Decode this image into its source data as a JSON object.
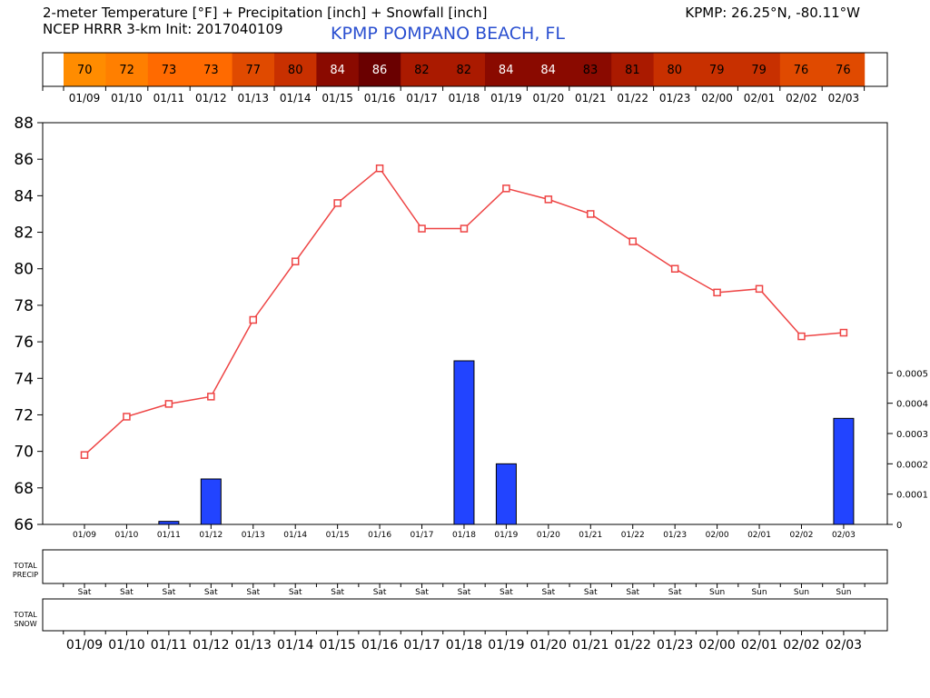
{
  "header": {
    "title": "2-meter Temperature [°F] + Precipitation [inch] + Snowfall [inch]",
    "model_line": "NCEP HRRR 3-km Init: 2017040109",
    "station_coords": "KPMP: 26.25°N, -80.11°W",
    "station_name": "KPMP POMPANO BEACH, FL"
  },
  "panels": {
    "precip_label_line1": "TOTAL",
    "precip_label_line2": "PRECIP",
    "snow_label_line1": "TOTAL",
    "snow_label_line2": "SNOW"
  },
  "colors": {
    "temperature_line": "#ee4444",
    "precip_bar": "#2244ff",
    "strip_scale": [
      "#ff8c00",
      "#ff7f00",
      "#ff6a00",
      "#e04a00",
      "#c83000",
      "#aa1a00",
      "#8a0a00",
      "#6a0000"
    ]
  },
  "chart_data": {
    "type": "line",
    "x": [
      "01/09",
      "01/10",
      "01/11",
      "01/12",
      "01/13",
      "01/14",
      "01/15",
      "01/16",
      "01/17",
      "01/18",
      "01/19",
      "01/20",
      "01/21",
      "01/22",
      "01/23",
      "02/00",
      "02/01",
      "02/02",
      "02/03"
    ],
    "days": [
      "Sat",
      "Sat",
      "Sat",
      "Sat",
      "Sat",
      "Sat",
      "Sat",
      "Sat",
      "Sat",
      "Sat",
      "Sat",
      "Sat",
      "Sat",
      "Sat",
      "Sat",
      "Sun",
      "Sun",
      "Sun",
      "Sun"
    ],
    "temperature_strip": [
      70,
      72,
      73,
      73,
      77,
      80,
      84,
      86,
      82,
      82,
      84,
      84,
      83,
      81,
      80,
      79,
      79,
      76,
      76
    ],
    "series": [
      {
        "name": "2-meter Temperature [°F]",
        "values": [
          69.8,
          71.9,
          72.6,
          73.0,
          77.2,
          80.4,
          83.6,
          85.5,
          82.2,
          82.2,
          84.4,
          83.8,
          83.0,
          81.5,
          80.0,
          78.7,
          78.9,
          76.3,
          76.5
        ]
      },
      {
        "name": "Precipitation [inch]",
        "values": [
          0,
          0,
          1e-05,
          0.00015,
          0,
          0,
          0,
          0,
          0,
          0.00054,
          0.0002,
          0,
          0,
          0,
          0,
          0,
          0,
          0,
          0.00035
        ]
      },
      {
        "name": "Snowfall [inch]",
        "values": [
          0,
          0,
          0,
          0,
          0,
          0,
          0,
          0,
          0,
          0,
          0,
          0,
          0,
          0,
          0,
          0,
          0,
          0,
          0
        ]
      }
    ],
    "y_ticks": [
      "66",
      "68",
      "70",
      "72",
      "74",
      "76",
      "78",
      "80",
      "82",
      "84",
      "86",
      "88"
    ],
    "ylim": [
      66,
      88
    ],
    "y2_ticks": [
      "0",
      "0.0001",
      "0.0002",
      "0.0003",
      "0.0004",
      "0.0005"
    ],
    "y2lim": [
      0,
      0.0005
    ],
    "grid": false,
    "legend": "none"
  }
}
